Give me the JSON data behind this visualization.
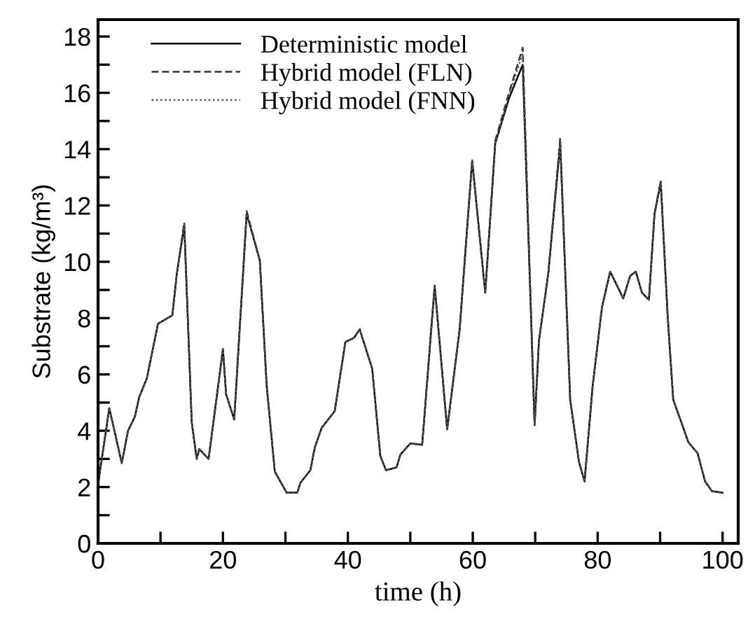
{
  "chart_data": {
    "type": "line",
    "xlabel": "time (h)",
    "ylabel": "Substrate (kg/m³)",
    "x": [
      0,
      1.8,
      3.8,
      4.8,
      5.9,
      6.6,
      7.8,
      9.6,
      11.9,
      12.6,
      13.8,
      15.0,
      15.8,
      16.2,
      17.7,
      20.0,
      20.5,
      21.8,
      23.8,
      25.9,
      27.0,
      28.3,
      30.2,
      31.9,
      32.4,
      34.0,
      34.7,
      35.8,
      37.9,
      39.6,
      41.0,
      41.9,
      43.9,
      45.2,
      46.1,
      47.8,
      48.4,
      50.0,
      51.9,
      53.9,
      55.9,
      57.9,
      59.9,
      62.0,
      63.6,
      65.8,
      68.0,
      69.9,
      70.6,
      72.1,
      74.0,
      75.6,
      77.0,
      77.9,
      79.2,
      80.7,
      82.0,
      84.1,
      85.2,
      86.1,
      87.1,
      88.2,
      89.1,
      90.1,
      91.2,
      92.1,
      93.4,
      94.5,
      96.0,
      97.2,
      98.3,
      100
    ],
    "series": [
      {
        "name": "Deterministic model",
        "color": "#000000",
        "line_style": "solid",
        "values": [
          2.1,
          4.8,
          2.85,
          4.0,
          4.5,
          5.2,
          5.85,
          7.8,
          8.1,
          9.55,
          11.3,
          4.3,
          3.0,
          3.35,
          3.0,
          6.9,
          5.3,
          4.4,
          11.7,
          10.05,
          5.6,
          2.55,
          1.8,
          1.8,
          2.15,
          2.6,
          3.4,
          4.1,
          4.7,
          7.15,
          7.3,
          7.6,
          6.2,
          3.1,
          2.6,
          2.7,
          3.15,
          3.55,
          3.5,
          9.15,
          4.05,
          7.6,
          13.6,
          8.9,
          14.2,
          15.8,
          17.0,
          4.2,
          7.2,
          9.6,
          14.2,
          5.1,
          2.9,
          2.2,
          5.6,
          8.4,
          9.65,
          8.7,
          9.5,
          9.65,
          8.9,
          8.65,
          11.7,
          12.8,
          8.1,
          5.1,
          4.3,
          3.6,
          3.2,
          2.2,
          1.85,
          1.8
        ]
      },
      {
        "name": "Hybrid model (FLN)",
        "color": "#333333",
        "line_style": "dashed",
        "values": [
          2.1,
          4.8,
          2.85,
          4.0,
          4.5,
          5.2,
          5.85,
          7.8,
          8.1,
          9.55,
          11.4,
          4.3,
          3.0,
          3.35,
          3.0,
          6.9,
          5.3,
          4.4,
          11.8,
          10.05,
          5.6,
          2.55,
          1.8,
          1.8,
          2.15,
          2.6,
          3.4,
          4.1,
          4.7,
          7.15,
          7.3,
          7.6,
          6.2,
          3.1,
          2.6,
          2.7,
          3.15,
          3.55,
          3.5,
          9.15,
          4.05,
          7.6,
          13.6,
          8.9,
          14.3,
          16.0,
          17.6,
          4.2,
          7.2,
          9.6,
          14.4,
          5.1,
          2.9,
          2.2,
          5.6,
          8.4,
          9.65,
          8.7,
          9.5,
          9.65,
          8.9,
          8.65,
          11.7,
          12.9,
          8.1,
          5.1,
          4.3,
          3.6,
          3.2,
          2.2,
          1.85,
          1.8
        ]
      },
      {
        "name": "Hybrid model (FNN)",
        "color": "#555555",
        "line_style": "dotted",
        "values": [
          2.1,
          4.8,
          2.85,
          4.0,
          4.5,
          5.2,
          5.85,
          7.8,
          8.1,
          9.55,
          11.3,
          4.3,
          3.0,
          3.35,
          3.0,
          6.9,
          5.3,
          4.4,
          11.7,
          10.05,
          5.6,
          2.55,
          1.8,
          1.8,
          2.15,
          2.6,
          3.4,
          4.1,
          4.7,
          7.15,
          7.3,
          7.6,
          6.2,
          3.1,
          2.6,
          2.7,
          3.15,
          3.55,
          3.5,
          9.15,
          4.05,
          7.6,
          13.6,
          8.9,
          14.2,
          15.9,
          17.4,
          4.2,
          7.2,
          9.6,
          14.2,
          5.1,
          2.9,
          2.2,
          5.6,
          8.4,
          9.65,
          8.7,
          9.5,
          9.65,
          8.9,
          8.65,
          11.7,
          12.8,
          8.1,
          5.1,
          4.3,
          3.6,
          3.2,
          2.2,
          1.85,
          1.8
        ]
      }
    ],
    "xlim": [
      0,
      102.5
    ],
    "ylim": [
      0,
      18.6
    ],
    "xticks": [
      0,
      {
        "value": 10,
        "label": null
      },
      20,
      {
        "value": 30,
        "label": null
      },
      40,
      {
        "value": 50,
        "label": null
      },
      60,
      {
        "value": 70,
        "label": null
      },
      80,
      {
        "value": 90,
        "label": null
      },
      100
    ],
    "yticks": [
      0,
      {
        "value": 1,
        "label": null
      },
      2,
      {
        "value": 3,
        "label": null
      },
      4,
      {
        "value": 5,
        "label": null
      },
      6,
      {
        "value": 7,
        "label": null
      },
      8,
      {
        "value": 9,
        "label": null
      },
      10,
      {
        "value": 11,
        "label": null
      },
      12,
      {
        "value": 13,
        "label": null
      },
      14,
      {
        "value": 15,
        "label": null
      },
      16,
      {
        "value": 17,
        "label": null
      },
      18
    ],
    "grid": false,
    "legend": "top left",
    "marker": "none"
  }
}
